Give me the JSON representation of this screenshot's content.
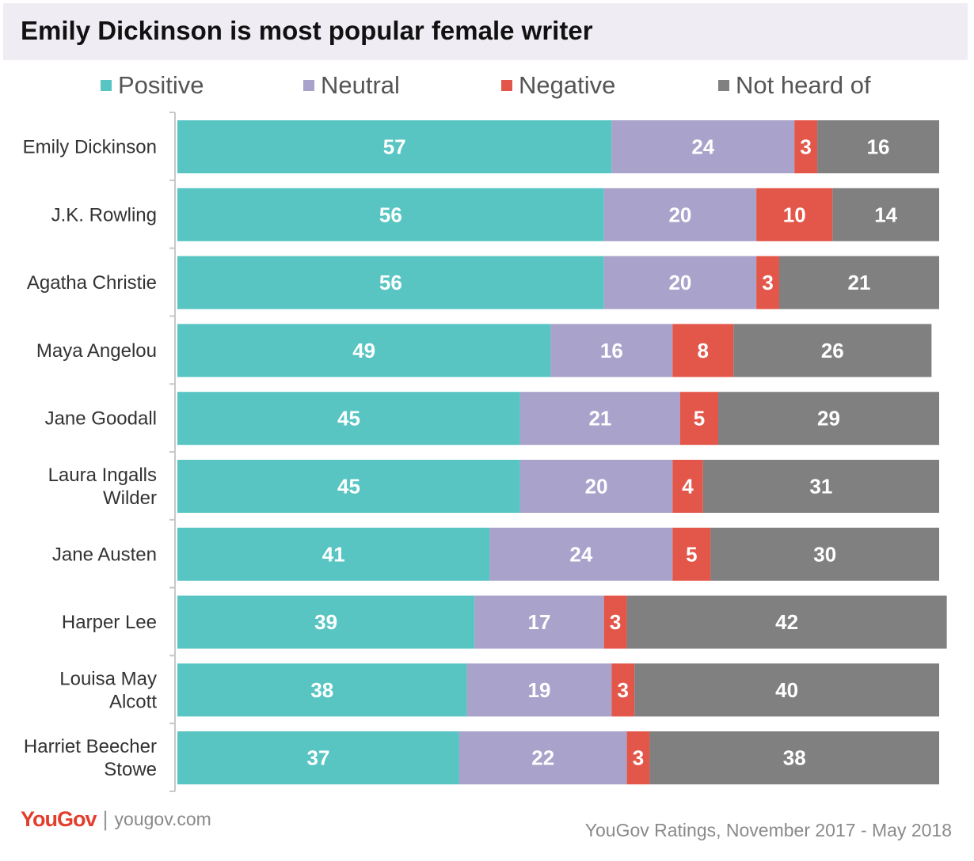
{
  "title": "Emily Dickinson is most popular female writer",
  "colors": {
    "positive": "#58c5c3",
    "neutral": "#a9a2cb",
    "negative": "#e3574a",
    "not_heard": "#808080"
  },
  "legend": [
    {
      "label": "Positive",
      "color": "#58c5c3"
    },
    {
      "label": "Neutral",
      "color": "#a9a2cb"
    },
    {
      "label": "Negative",
      "color": "#e3574a"
    },
    {
      "label": "Not heard of",
      "color": "#808080"
    }
  ],
  "chart_data": {
    "type": "bar",
    "orientation": "horizontal",
    "stacked": true,
    "title": "Emily Dickinson is most popular female writer",
    "categories": [
      [
        "Emily Dickinson"
      ],
      [
        "J.K. Rowling"
      ],
      [
        "Agatha Christie"
      ],
      [
        "Maya Angelou"
      ],
      [
        "Jane Goodall"
      ],
      [
        "Laura Ingalls",
        "Wilder"
      ],
      [
        "Jane Austen"
      ],
      [
        "Harper Lee"
      ],
      [
        "Louisa May",
        "Alcott"
      ],
      [
        "Harriet Beecher",
        "Stowe"
      ]
    ],
    "series": [
      {
        "name": "Positive",
        "color": "#58c5c3",
        "values": [
          57,
          56,
          56,
          49,
          45,
          45,
          41,
          39,
          38,
          37
        ]
      },
      {
        "name": "Neutral",
        "color": "#a9a2cb",
        "values": [
          24,
          20,
          20,
          16,
          21,
          20,
          24,
          17,
          19,
          22
        ]
      },
      {
        "name": "Negative",
        "color": "#e3574a",
        "values": [
          3,
          10,
          3,
          8,
          5,
          4,
          5,
          3,
          3,
          3
        ]
      },
      {
        "name": "Not heard of",
        "color": "#808080",
        "values": [
          16,
          14,
          21,
          26,
          29,
          31,
          30,
          42,
          40,
          38
        ]
      }
    ],
    "xlim": [
      0,
      100
    ],
    "grid": false,
    "legend_position": "top"
  },
  "footer": {
    "logo": "YouGov",
    "separator": "|",
    "url": "yougov.com",
    "source": "YouGov Ratings, November 2017 - May 2018"
  }
}
